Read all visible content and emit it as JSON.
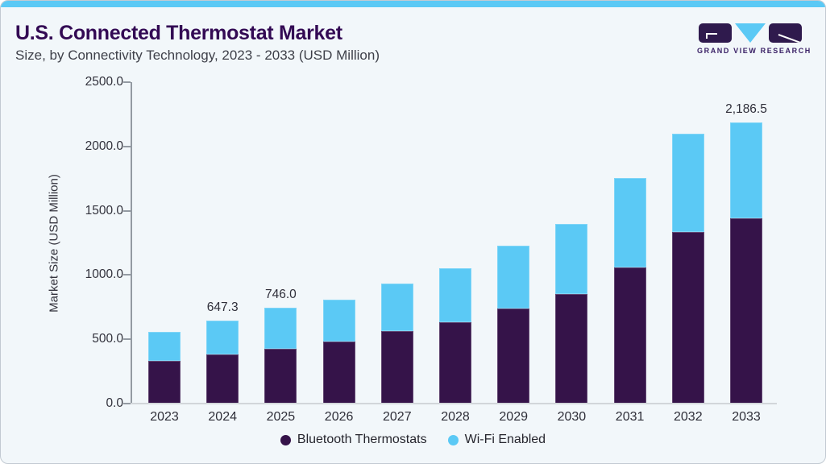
{
  "header": {
    "title": "U.S. Connected Thermostat Market",
    "subtitle": "Size, by Connectivity Technology, 2023 - 2033 (USD Million)"
  },
  "logo": {
    "text": "GRAND VIEW RESEARCH"
  },
  "colors": {
    "accent_blue": "#5BC9F5",
    "bar_purple": "#351349",
    "title_purple": "#330A54",
    "card_background": "#F2F7FA",
    "card_border": "#C2CAD2",
    "axis_line": "#939AA2",
    "baseline": "#D2D6DA",
    "text_dark": "#32323C"
  },
  "chart_data": {
    "type": "bar",
    "stacked": true,
    "categories": [
      "2023",
      "2024",
      "2025",
      "2026",
      "2027",
      "2028",
      "2029",
      "2030",
      "2031",
      "2032",
      "2033"
    ],
    "series": [
      {
        "name": "Bluetooth Thermostats",
        "color": "#351349",
        "values": [
          335,
          380,
          425,
          485,
          565,
          630,
          740,
          850,
          1060,
          1335,
          1440
        ]
      },
      {
        "name": "Wi-Fi Enabled",
        "color": "#5BC9F5",
        "values": [
          220,
          267.3,
          321,
          325,
          370,
          420,
          485,
          550,
          695,
          765,
          746.5
        ]
      }
    ],
    "totals": [
      555,
      647.3,
      746.0,
      810,
      935,
      1050,
      1225,
      1400,
      1755,
      2100,
      2186.5
    ],
    "value_labels": [
      {
        "category": "2024",
        "text": "647.3"
      },
      {
        "category": "2025",
        "text": "746.0"
      },
      {
        "category": "2033",
        "text": "2,186.5"
      }
    ],
    "ylabel": "Market Size (USD Million)",
    "xlabel": "",
    "ylim": [
      0,
      2500
    ],
    "ytick_step": 500,
    "ytick_labels": [
      "0.0",
      "500.0",
      "1000.0",
      "1500.0",
      "2000.0",
      "2500.0"
    ],
    "legend_position": "bottom",
    "grid": false
  }
}
